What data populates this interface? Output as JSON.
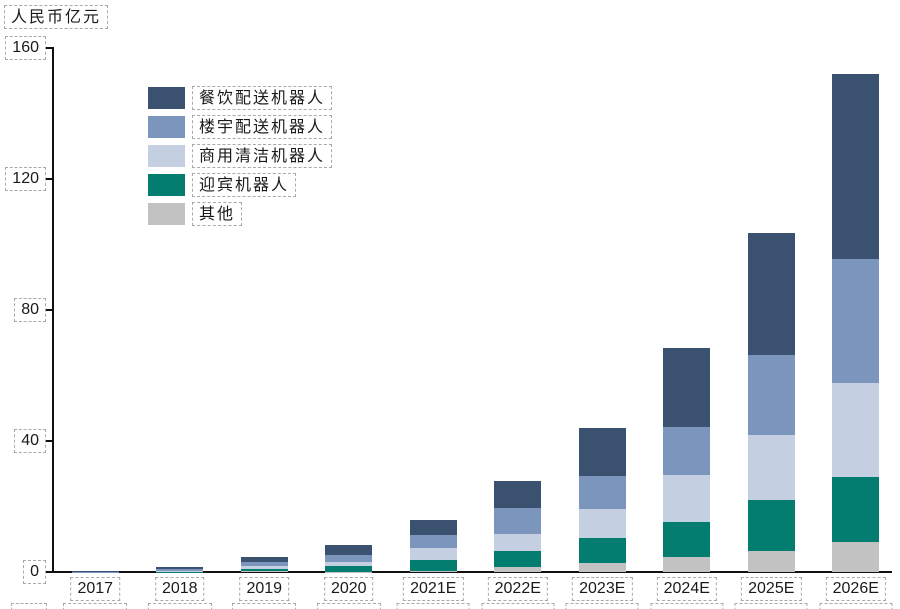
{
  "chart": {
    "axis_unit_label": "人民币亿元",
    "text_color": "#1a1a1a",
    "axis_color": "#111111",
    "annotation_box_color": "#a9a9a9"
  },
  "chart_data": {
    "type": "bar",
    "stacked": true,
    "title": "人民币亿元",
    "xlabel": "",
    "ylabel": "人民币亿元",
    "ylim": [
      0,
      160
    ],
    "yticks": [
      0,
      40,
      80,
      120,
      160
    ],
    "grid": false,
    "legend_position": "upper-left-inside",
    "categories": [
      "2017",
      "2018",
      "2019",
      "2020",
      "2021E",
      "2022E",
      "2023E",
      "2024E",
      "2025E",
      "2026E"
    ],
    "series": [
      {
        "name": "餐饮配送机器人",
        "color": "#3b5170",
        "values": [
          0.2,
          0.7,
          1.6,
          3.1,
          4.6,
          8.3,
          14.7,
          24.1,
          37.2,
          56.4
        ]
      },
      {
        "name": "楼宇配送机器人",
        "color": "#7c95bd",
        "values": [
          0.1,
          0.5,
          1.1,
          2.1,
          3.8,
          7.9,
          10.1,
          14.7,
          24.5,
          37.9
        ]
      },
      {
        "name": "商用清洁机器人",
        "color": "#c5cfe2",
        "values": [
          0.0,
          0.2,
          1.0,
          1.5,
          3.6,
          5.2,
          8.8,
          14.3,
          19.8,
          28.7
        ]
      },
      {
        "name": "迎宾机器人",
        "color": "#047d71",
        "values": [
          0.0,
          0.1,
          0.7,
          1.6,
          3.4,
          4.9,
          7.7,
          10.7,
          15.6,
          19.8
        ]
      },
      {
        "name": "其他",
        "color": "#c2c2c2",
        "values": [
          0.0,
          0.0,
          0.2,
          0.1,
          0.4,
          1.5,
          2.7,
          4.6,
          6.4,
          9.2
        ]
      }
    ]
  }
}
